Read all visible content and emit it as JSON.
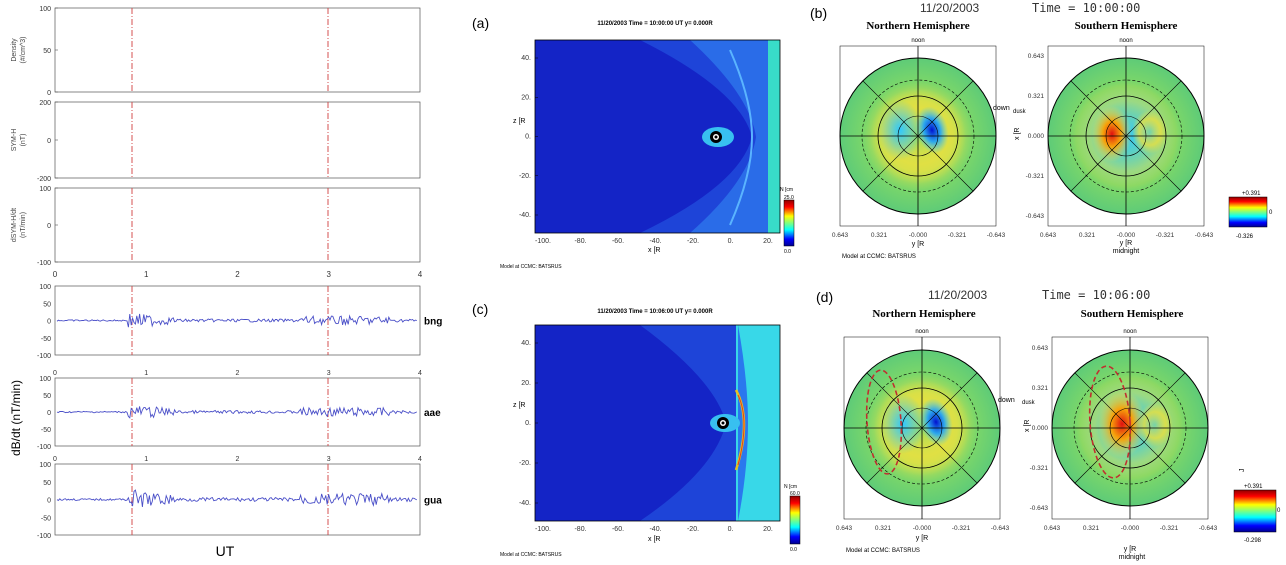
{
  "left_panels": {
    "stack1": [
      {
        "ylabel": [
          "Density",
          "(#/cm^3)"
        ],
        "yticks": [
          100,
          50,
          0
        ]
      },
      {
        "ylabel": [
          "SYM-H",
          "(nT)"
        ],
        "yticks": [
          200,
          0,
          -200
        ]
      },
      {
        "ylabel": [
          "dSYM-H/dt",
          "(nT/min)"
        ],
        "yticks": [
          100,
          0,
          -100
        ]
      }
    ],
    "stack1_xticks": [
      "0",
      "1",
      "2",
      "3",
      "4"
    ],
    "stack2": [
      {
        "station": "bng",
        "yticks": [
          100,
          50,
          0,
          -50,
          -100
        ]
      },
      {
        "station": "aae",
        "yticks": [
          100,
          50,
          0,
          -50,
          -100
        ]
      },
      {
        "station": "gua",
        "yticks": [
          100,
          50,
          0,
          -50,
          -100
        ]
      }
    ],
    "stack2_xticks": [
      "0",
      "1",
      "2",
      "3",
      "4"
    ],
    "stack2_ylabel": "dB/dt (nT/min)",
    "xlabel": "UT"
  },
  "mhd_panels": [
    {
      "label": "(a)",
      "title": "11/20/2003 Time = 10:00:00 UT y= 0.000R",
      "yticks": [
        "40.",
        "20.",
        "0.",
        "-20.",
        "-40."
      ],
      "xticks": [
        "-100.",
        "-80.",
        "-60.",
        "-40.",
        "-20.",
        "0.",
        "20."
      ],
      "zlabel": "z [R",
      "xlabel": "x [R",
      "colorbar_title": "N [cm",
      "colorbar_max": "25.0",
      "colorbar_min": "0.0",
      "footer": "Model at CCMC: BATSRUS"
    },
    {
      "label": "(c)",
      "title": "11/20/2003 Time = 10:06:00 UT y= 0.000R",
      "yticks": [
        "40.",
        "20.",
        "0.",
        "-20.",
        "-40."
      ],
      "xticks": [
        "-100.",
        "-80.",
        "-60.",
        "-40.",
        "-20.",
        "0.",
        "20."
      ],
      "zlabel": "z [R",
      "xlabel": "x [R",
      "colorbar_title": "N [cm",
      "colorbar_max": "60.0",
      "colorbar_min": "0.0",
      "footer": "Model at CCMC: BATSRUS"
    }
  ],
  "polar_rows": [
    {
      "label": "(b)",
      "date": "11/20/2003",
      "time": "Time = 10:00:00",
      "north_title": "Northern Hemisphere",
      "south_title": "Southern Hemisphere",
      "noon": "noon",
      "down": "down",
      "dusk": "dusk",
      "midnight": "midnight",
      "yticks": [
        "0.643",
        "0.321",
        "0.000",
        "-0.321",
        "-0.643"
      ],
      "xticks": [
        "0.643",
        "0.321",
        "-0.000",
        "-0.321",
        "-0.643"
      ],
      "xlabel": "y [R",
      "ylabel": "x [R",
      "cbar_label": "J",
      "cbar_max": "+0.391",
      "cbar_mid": "0",
      "cbar_min": "-0.326",
      "footer": "Model at CCMC: BATSRUS"
    },
    {
      "label": "(d)",
      "date": "11/20/2003",
      "time": "Time = 10:06:00",
      "north_title": "Northern Hemisphere",
      "south_title": "Southern Hemisphere",
      "noon": "noon",
      "down": "down",
      "dusk": "dusk",
      "midnight": "midnight",
      "yticks": [
        "0.643",
        "0.321",
        "0.000",
        "-0.321",
        "-0.643"
      ],
      "xticks": [
        "0.643",
        "0.321",
        "-0.000",
        "-0.321",
        "-0.643"
      ],
      "xlabel": "y [R",
      "ylabel": "x [R",
      "cbar_label": "J",
      "cbar_max": "+0.391",
      "cbar_mid": "0",
      "cbar_min": "-0.298",
      "footer": "Model at CCMC: BATSRUS"
    }
  ],
  "colors": {
    "trace": "#4a4fc8",
    "event_line": "#d04040",
    "field_dark": "#1020c8",
    "field_mid": "#2a6ce8",
    "polar_green": "#6ed06a"
  }
}
